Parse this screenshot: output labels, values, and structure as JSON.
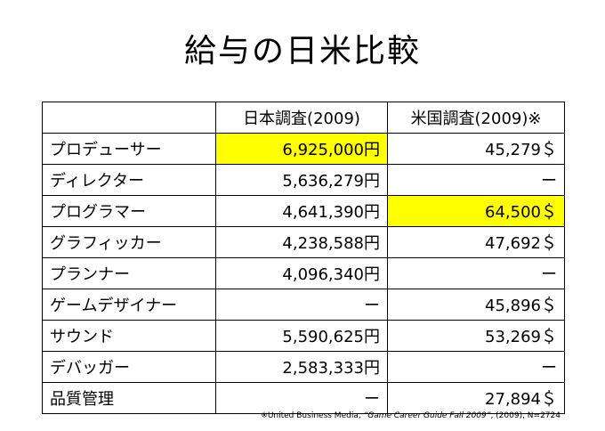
{
  "title": "給与の日米比較",
  "table": {
    "headers": [
      "",
      "日本調査(2009)",
      "米国調査(2009)※"
    ],
    "rows": [
      {
        "job": "プロデューサー",
        "japan": "6,925,000円",
        "us": "45,279＄",
        "hl_japan": true,
        "hl_us": false
      },
      {
        "job": "ディレクター",
        "japan": "5,636,279円",
        "us": "ー",
        "hl_japan": false,
        "hl_us": false
      },
      {
        "job": "プログラマー",
        "japan": "4,641,390円",
        "us": "64,500＄",
        "hl_japan": false,
        "hl_us": true
      },
      {
        "job": "グラフィッカー",
        "japan": "4,238,588円",
        "us": "47,692＄",
        "hl_japan": false,
        "hl_us": false
      },
      {
        "job": "プランナー",
        "japan": "4,096,340円",
        "us": "ー",
        "hl_japan": false,
        "hl_us": false
      },
      {
        "job": "ゲームデザイナー",
        "japan": "ー",
        "us": "45,896＄",
        "hl_japan": false,
        "hl_us": false
      },
      {
        "job": "サウンド",
        "japan": "5,590,625円",
        "us": "53,269＄",
        "hl_japan": false,
        "hl_us": false
      },
      {
        "job": "デバッガー",
        "japan": "2,583,333円",
        "us": "ー",
        "hl_japan": false,
        "hl_us": false
      },
      {
        "job": "品質管理",
        "japan": "ー",
        "us": "27,894＄",
        "hl_japan": false,
        "hl_us": false
      }
    ]
  },
  "highlight_color": "#ffff00",
  "footnote": {
    "prefix": "※United Business Media, ",
    "book": "“Game Career Guide Fall 2009”",
    "suffix": ", (2009), N=2724"
  }
}
